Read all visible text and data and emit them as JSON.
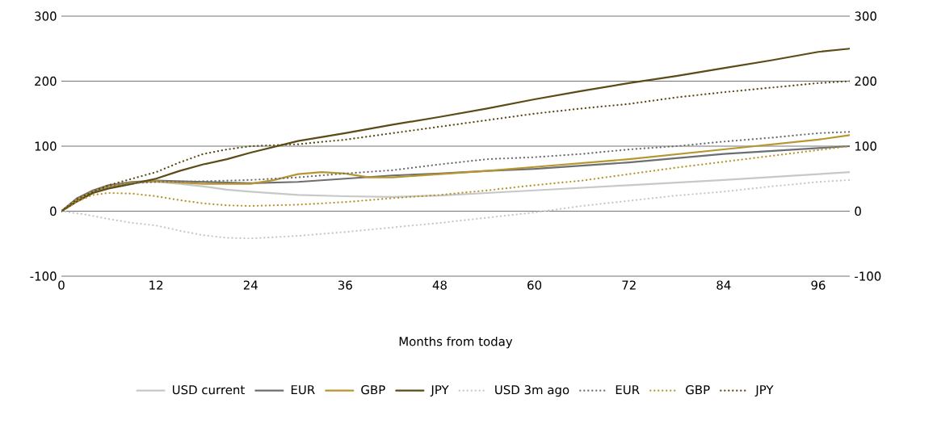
{
  "chart_data": {
    "type": "line",
    "xlabel": "Months from today",
    "xlim": [
      0,
      100
    ],
    "xticks": [
      0,
      12,
      24,
      36,
      48,
      60,
      72,
      84,
      96
    ],
    "ylim": [
      -100,
      300
    ],
    "yticks": [
      -100,
      0,
      100,
      200,
      300
    ],
    "y2lim": [
      -100,
      300
    ],
    "y2ticks": [
      -100,
      0,
      100,
      200,
      300
    ],
    "grid": "y",
    "legend": "bottom",
    "series": [
      {
        "name": "USD current",
        "color": "#c8c8c8",
        "line_style": "solid",
        "x": [
          0,
          2,
          4,
          6,
          9,
          12,
          15,
          18,
          21,
          24,
          30,
          36,
          42,
          48,
          54,
          60,
          72,
          84,
          96,
          100
        ],
        "values": [
          0,
          15,
          30,
          40,
          45,
          45,
          42,
          38,
          33,
          30,
          25,
          23,
          22,
          24,
          28,
          32,
          40,
          48,
          57,
          60
        ]
      },
      {
        "name": "EUR",
        "color": "#6d6e71",
        "line_style": "solid",
        "x": [
          0,
          2,
          4,
          6,
          9,
          12,
          18,
          24,
          30,
          36,
          42,
          48,
          54,
          60,
          72,
          84,
          96,
          100
        ],
        "values": [
          0,
          20,
          32,
          40,
          45,
          47,
          45,
          43,
          45,
          50,
          55,
          58,
          62,
          65,
          75,
          88,
          97,
          100
        ]
      },
      {
        "name": "GBP",
        "color": "#b8962e",
        "line_style": "solid",
        "x": [
          0,
          2,
          4,
          6,
          9,
          12,
          18,
          24,
          27,
          30,
          33,
          36,
          39,
          42,
          48,
          54,
          60,
          72,
          84,
          96,
          100
        ],
        "values": [
          0,
          18,
          30,
          38,
          44,
          46,
          42,
          42,
          48,
          57,
          60,
          58,
          52,
          52,
          57,
          62,
          68,
          80,
          95,
          110,
          117
        ]
      },
      {
        "name": "JPY",
        "color": "#5b4b16",
        "line_style": "solid",
        "x": [
          0,
          2,
          4,
          6,
          9,
          12,
          15,
          18,
          21,
          24,
          30,
          36,
          42,
          48,
          54,
          60,
          66,
          72,
          78,
          84,
          90,
          96,
          100
        ],
        "values": [
          0,
          15,
          28,
          35,
          42,
          50,
          62,
          72,
          80,
          90,
          108,
          120,
          133,
          145,
          158,
          172,
          185,
          197,
          208,
          220,
          232,
          245,
          250
        ]
      },
      {
        "name": "USD 3m ago",
        "color": "#c8c8c8",
        "line_style": "dotted",
        "x": [
          0,
          3,
          6,
          9,
          12,
          15,
          18,
          21,
          24,
          30,
          36,
          42,
          48,
          54,
          60,
          66,
          72,
          78,
          84,
          90,
          96,
          100
        ],
        "values": [
          0,
          -5,
          -12,
          -18,
          -22,
          -30,
          -37,
          -41,
          -42,
          -38,
          -32,
          -25,
          -18,
          -10,
          -2,
          8,
          16,
          24,
          30,
          38,
          45,
          48
        ]
      },
      {
        "name": "EUR",
        "color": "#6d6e71",
        "line_style": "dotted",
        "x": [
          0,
          2,
          4,
          6,
          9,
          12,
          18,
          24,
          30,
          36,
          42,
          48,
          54,
          60,
          66,
          72,
          78,
          84,
          90,
          96,
          100
        ],
        "values": [
          0,
          20,
          30,
          38,
          43,
          45,
          46,
          48,
          52,
          58,
          63,
          72,
          80,
          83,
          88,
          95,
          100,
          107,
          113,
          120,
          122
        ]
      },
      {
        "name": "GBP",
        "color": "#b8962e",
        "line_style": "dotted",
        "x": [
          0,
          2,
          4,
          6,
          9,
          12,
          15,
          18,
          21,
          24,
          30,
          36,
          42,
          48,
          54,
          60,
          66,
          72,
          78,
          84,
          90,
          96,
          100
        ],
        "values": [
          0,
          15,
          25,
          28,
          27,
          23,
          17,
          12,
          9,
          8,
          10,
          14,
          20,
          25,
          32,
          40,
          47,
          57,
          67,
          76,
          85,
          94,
          100
        ]
      },
      {
        "name": "JPY",
        "color": "#5b4b16",
        "line_style": "dotted",
        "x": [
          0,
          2,
          4,
          6,
          9,
          12,
          15,
          18,
          21,
          24,
          30,
          36,
          42,
          48,
          54,
          60,
          66,
          72,
          78,
          84,
          90,
          96,
          100
        ],
        "values": [
          0,
          18,
          30,
          40,
          50,
          60,
          75,
          88,
          95,
          100,
          103,
          110,
          120,
          130,
          140,
          150,
          158,
          165,
          175,
          183,
          190,
          197,
          200
        ]
      }
    ]
  }
}
